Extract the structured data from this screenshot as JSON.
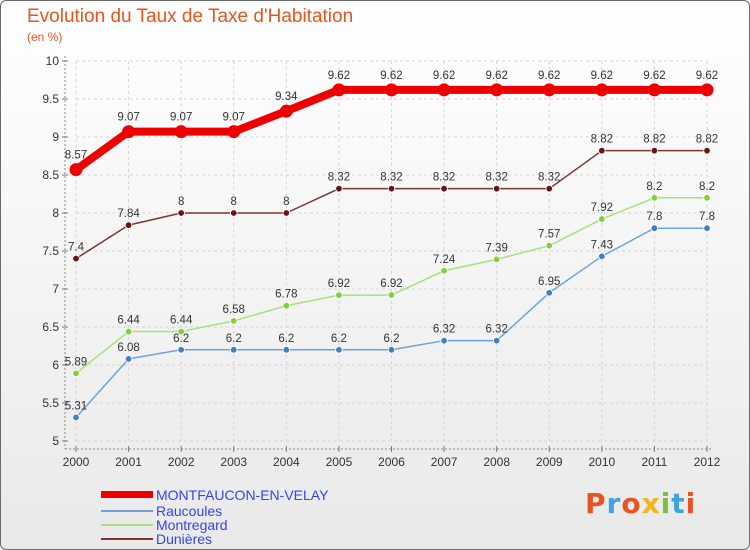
{
  "title": "Evolution du Taux de Taxe d'Habitation",
  "subtitle": "(en %)",
  "logo": {
    "letters": [
      "P",
      "r",
      "o",
      "x",
      "i",
      "t",
      "i"
    ],
    "colors": [
      "#e8531f",
      "#3fa3de",
      "#e8531f",
      "#f2b31b",
      "#77c043",
      "#3fa3de",
      "#e8531f"
    ]
  },
  "legend": [
    {
      "label": "MONTFAUCON-EN-VELAY",
      "color": "#ee0000",
      "thick": true
    },
    {
      "label": "Raucoules",
      "color": "#6fa3d7",
      "thick": false
    },
    {
      "label": "Montregard",
      "color": "#a7e07c",
      "thick": false
    },
    {
      "label": "Dunières",
      "color": "#7a3434",
      "thick": false
    }
  ],
  "chart_data": {
    "type": "line",
    "title": "Evolution du Taux de Taxe d'Habitation",
    "ylabel": "(en %)",
    "x": [
      "2000",
      "2001",
      "2002",
      "2003",
      "2004",
      "2005",
      "2006",
      "2007",
      "2008",
      "2009",
      "2010",
      "2011",
      "2012"
    ],
    "ylim": [
      5,
      10
    ],
    "yticks": [
      "5",
      "5.5",
      "6",
      "6.5",
      "7",
      "7.5",
      "8",
      "8.5",
      "9",
      "9.5",
      "10"
    ],
    "grid": true,
    "series": [
      {
        "name": "Dunières",
        "color": "#7a3434",
        "point_color": "#6a1414",
        "values": [
          7.4,
          7.84,
          8,
          8,
          8,
          8.32,
          8.32,
          8.32,
          8.32,
          8.32,
          8.82,
          8.82,
          8.82
        ],
        "labels": [
          "7.4",
          "7.84",
          "8",
          "8",
          "8",
          "8.32",
          "8.32",
          "8.32",
          "8.32",
          "8.32",
          "8.82",
          "8.82",
          "8.82"
        ]
      },
      {
        "name": "Montregard",
        "color": "#a7e07c",
        "point_color": "#7fd03a",
        "values": [
          5.89,
          6.44,
          6.44,
          6.58,
          6.78,
          6.92,
          6.92,
          7.24,
          7.39,
          7.57,
          7.92,
          8.2,
          8.2
        ],
        "labels": [
          "5.89",
          "6.44",
          "6.44",
          "6.58",
          "6.78",
          "6.92",
          "6.92",
          "7.24",
          "7.39",
          "7.57",
          "7.92",
          "8.2",
          "8.2"
        ]
      },
      {
        "name": "Raucoules",
        "color": "#6fa3d7",
        "point_color": "#3f7fc4",
        "values": [
          5.31,
          6.08,
          6.2,
          6.2,
          6.2,
          6.2,
          6.2,
          6.32,
          6.32,
          6.95,
          7.43,
          7.8,
          7.8
        ],
        "labels": [
          "5.31",
          "6.08",
          "6.2",
          "6.2",
          "6.2",
          "6.2",
          "6.2",
          "6.32",
          "6.32",
          "6.95",
          "7.43",
          "7.8",
          "7.8"
        ]
      },
      {
        "name": "MONTFAUCON-EN-VELAY",
        "color": "#ee0000",
        "point_color": "#ee0000",
        "values": [
          8.57,
          9.07,
          9.07,
          9.07,
          9.34,
          9.62,
          9.62,
          9.62,
          9.62,
          9.62,
          9.62,
          9.62,
          9.62
        ],
        "labels": [
          "8.57",
          "9.07",
          "9.07",
          "9.07",
          "9.34",
          "9.62",
          "9.62",
          "9.62",
          "9.62",
          "9.62",
          "9.62",
          "9.62",
          "9.62"
        ]
      }
    ]
  }
}
